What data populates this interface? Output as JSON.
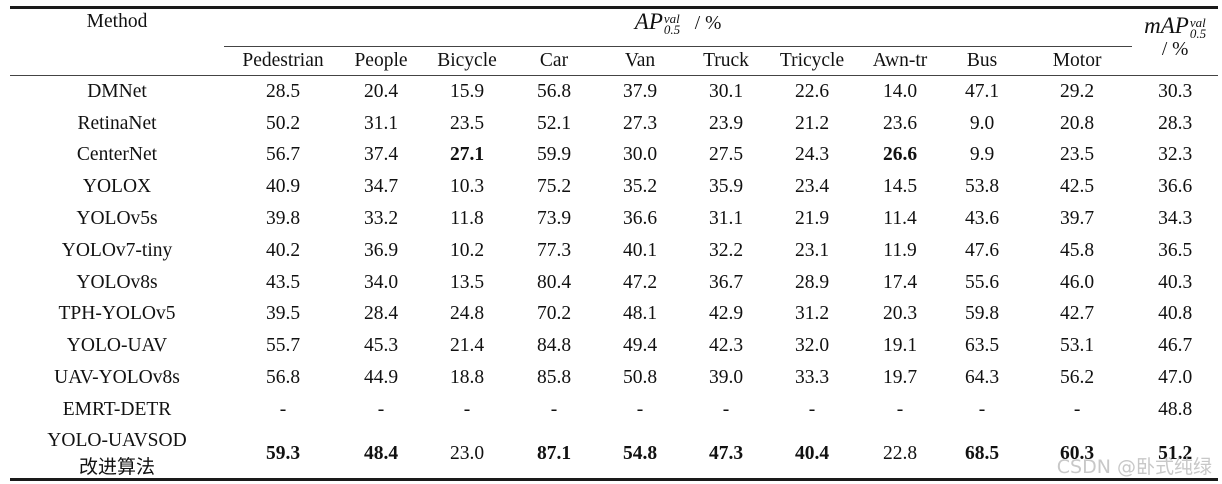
{
  "table": {
    "method_header": "Method",
    "ap_header": {
      "base": "AP",
      "sup": "val",
      "sub": "0.5",
      "unit": "/ %"
    },
    "map_header": {
      "base": "mAP",
      "sup": "val",
      "sub": "0.5",
      "unit": "/ %"
    },
    "classes": [
      "Pedestrian",
      "People",
      "Bicycle",
      "Car",
      "Van",
      "Truck",
      "Tricycle",
      "Awn-tr",
      "Bus",
      "Motor"
    ],
    "rows": [
      {
        "method": "DMNet",
        "values": [
          "28.5",
          "20.4",
          "15.9",
          "56.8",
          "37.9",
          "30.1",
          "22.6",
          "14.0",
          "47.1",
          "29.2"
        ],
        "map": "30.3",
        "bold": []
      },
      {
        "method": "RetinaNet",
        "values": [
          "50.2",
          "31.1",
          "23.5",
          "52.1",
          "27.3",
          "23.9",
          "21.2",
          "23.6",
          "9.0",
          "20.8"
        ],
        "map": "28.3",
        "bold": []
      },
      {
        "method": "CenterNet",
        "values": [
          "56.7",
          "37.4",
          "27.1",
          "59.9",
          "30.0",
          "27.5",
          "24.3",
          "26.6",
          "9.9",
          "23.5"
        ],
        "map": "32.3",
        "bold": [
          2,
          7
        ]
      },
      {
        "method": "YOLOX",
        "values": [
          "40.9",
          "34.7",
          "10.3",
          "75.2",
          "35.2",
          "35.9",
          "23.4",
          "14.5",
          "53.8",
          "42.5"
        ],
        "map": "36.6",
        "bold": []
      },
      {
        "method": "YOLOv5s",
        "values": [
          "39.8",
          "33.2",
          "11.8",
          "73.9",
          "36.6",
          "31.1",
          "21.9",
          "11.4",
          "43.6",
          "39.7"
        ],
        "map": "34.3",
        "bold": []
      },
      {
        "method": "YOLOv7-tiny",
        "values": [
          "40.2",
          "36.9",
          "10.2",
          "77.3",
          "40.1",
          "32.2",
          "23.1",
          "11.9",
          "47.6",
          "45.8"
        ],
        "map": "36.5",
        "bold": []
      },
      {
        "method": "YOLOv8s",
        "values": [
          "43.5",
          "34.0",
          "13.5",
          "80.4",
          "47.2",
          "36.7",
          "28.9",
          "17.4",
          "55.6",
          "46.0"
        ],
        "map": "40.3",
        "bold": []
      },
      {
        "method": "TPH-YOLOv5",
        "values": [
          "39.5",
          "28.4",
          "24.8",
          "70.2",
          "48.1",
          "42.9",
          "31.2",
          "20.3",
          "59.8",
          "42.7"
        ],
        "map": "40.8",
        "bold": []
      },
      {
        "method": "YOLO-UAV",
        "values": [
          "55.7",
          "45.3",
          "21.4",
          "84.8",
          "49.4",
          "42.3",
          "32.0",
          "19.1",
          "63.5",
          "53.1"
        ],
        "map": "46.7",
        "bold": []
      },
      {
        "method": "UAV-YOLOv8s",
        "values": [
          "56.8",
          "44.9",
          "18.8",
          "85.8",
          "50.8",
          "39.0",
          "33.3",
          "19.7",
          "64.3",
          "56.2"
        ],
        "map": "47.0",
        "bold": []
      },
      {
        "method": "EMRT-DETR",
        "values": [
          "-",
          "-",
          "-",
          "-",
          "-",
          "-",
          "-",
          "-",
          "-",
          "-"
        ],
        "map": "48.8",
        "bold": []
      }
    ],
    "last_row": {
      "method_line1": "YOLO-UAVSOD",
      "method_line2": "改进算法",
      "values": [
        "59.3",
        "48.4",
        "23.0",
        "87.1",
        "54.8",
        "47.3",
        "40.4",
        "22.8",
        "68.5",
        "60.3"
      ],
      "map": "51.2",
      "bold": [
        0,
        1,
        3,
        4,
        5,
        6,
        8,
        9
      ],
      "map_bold": true
    }
  },
  "watermark": "CSDN @卧式纯绿"
}
